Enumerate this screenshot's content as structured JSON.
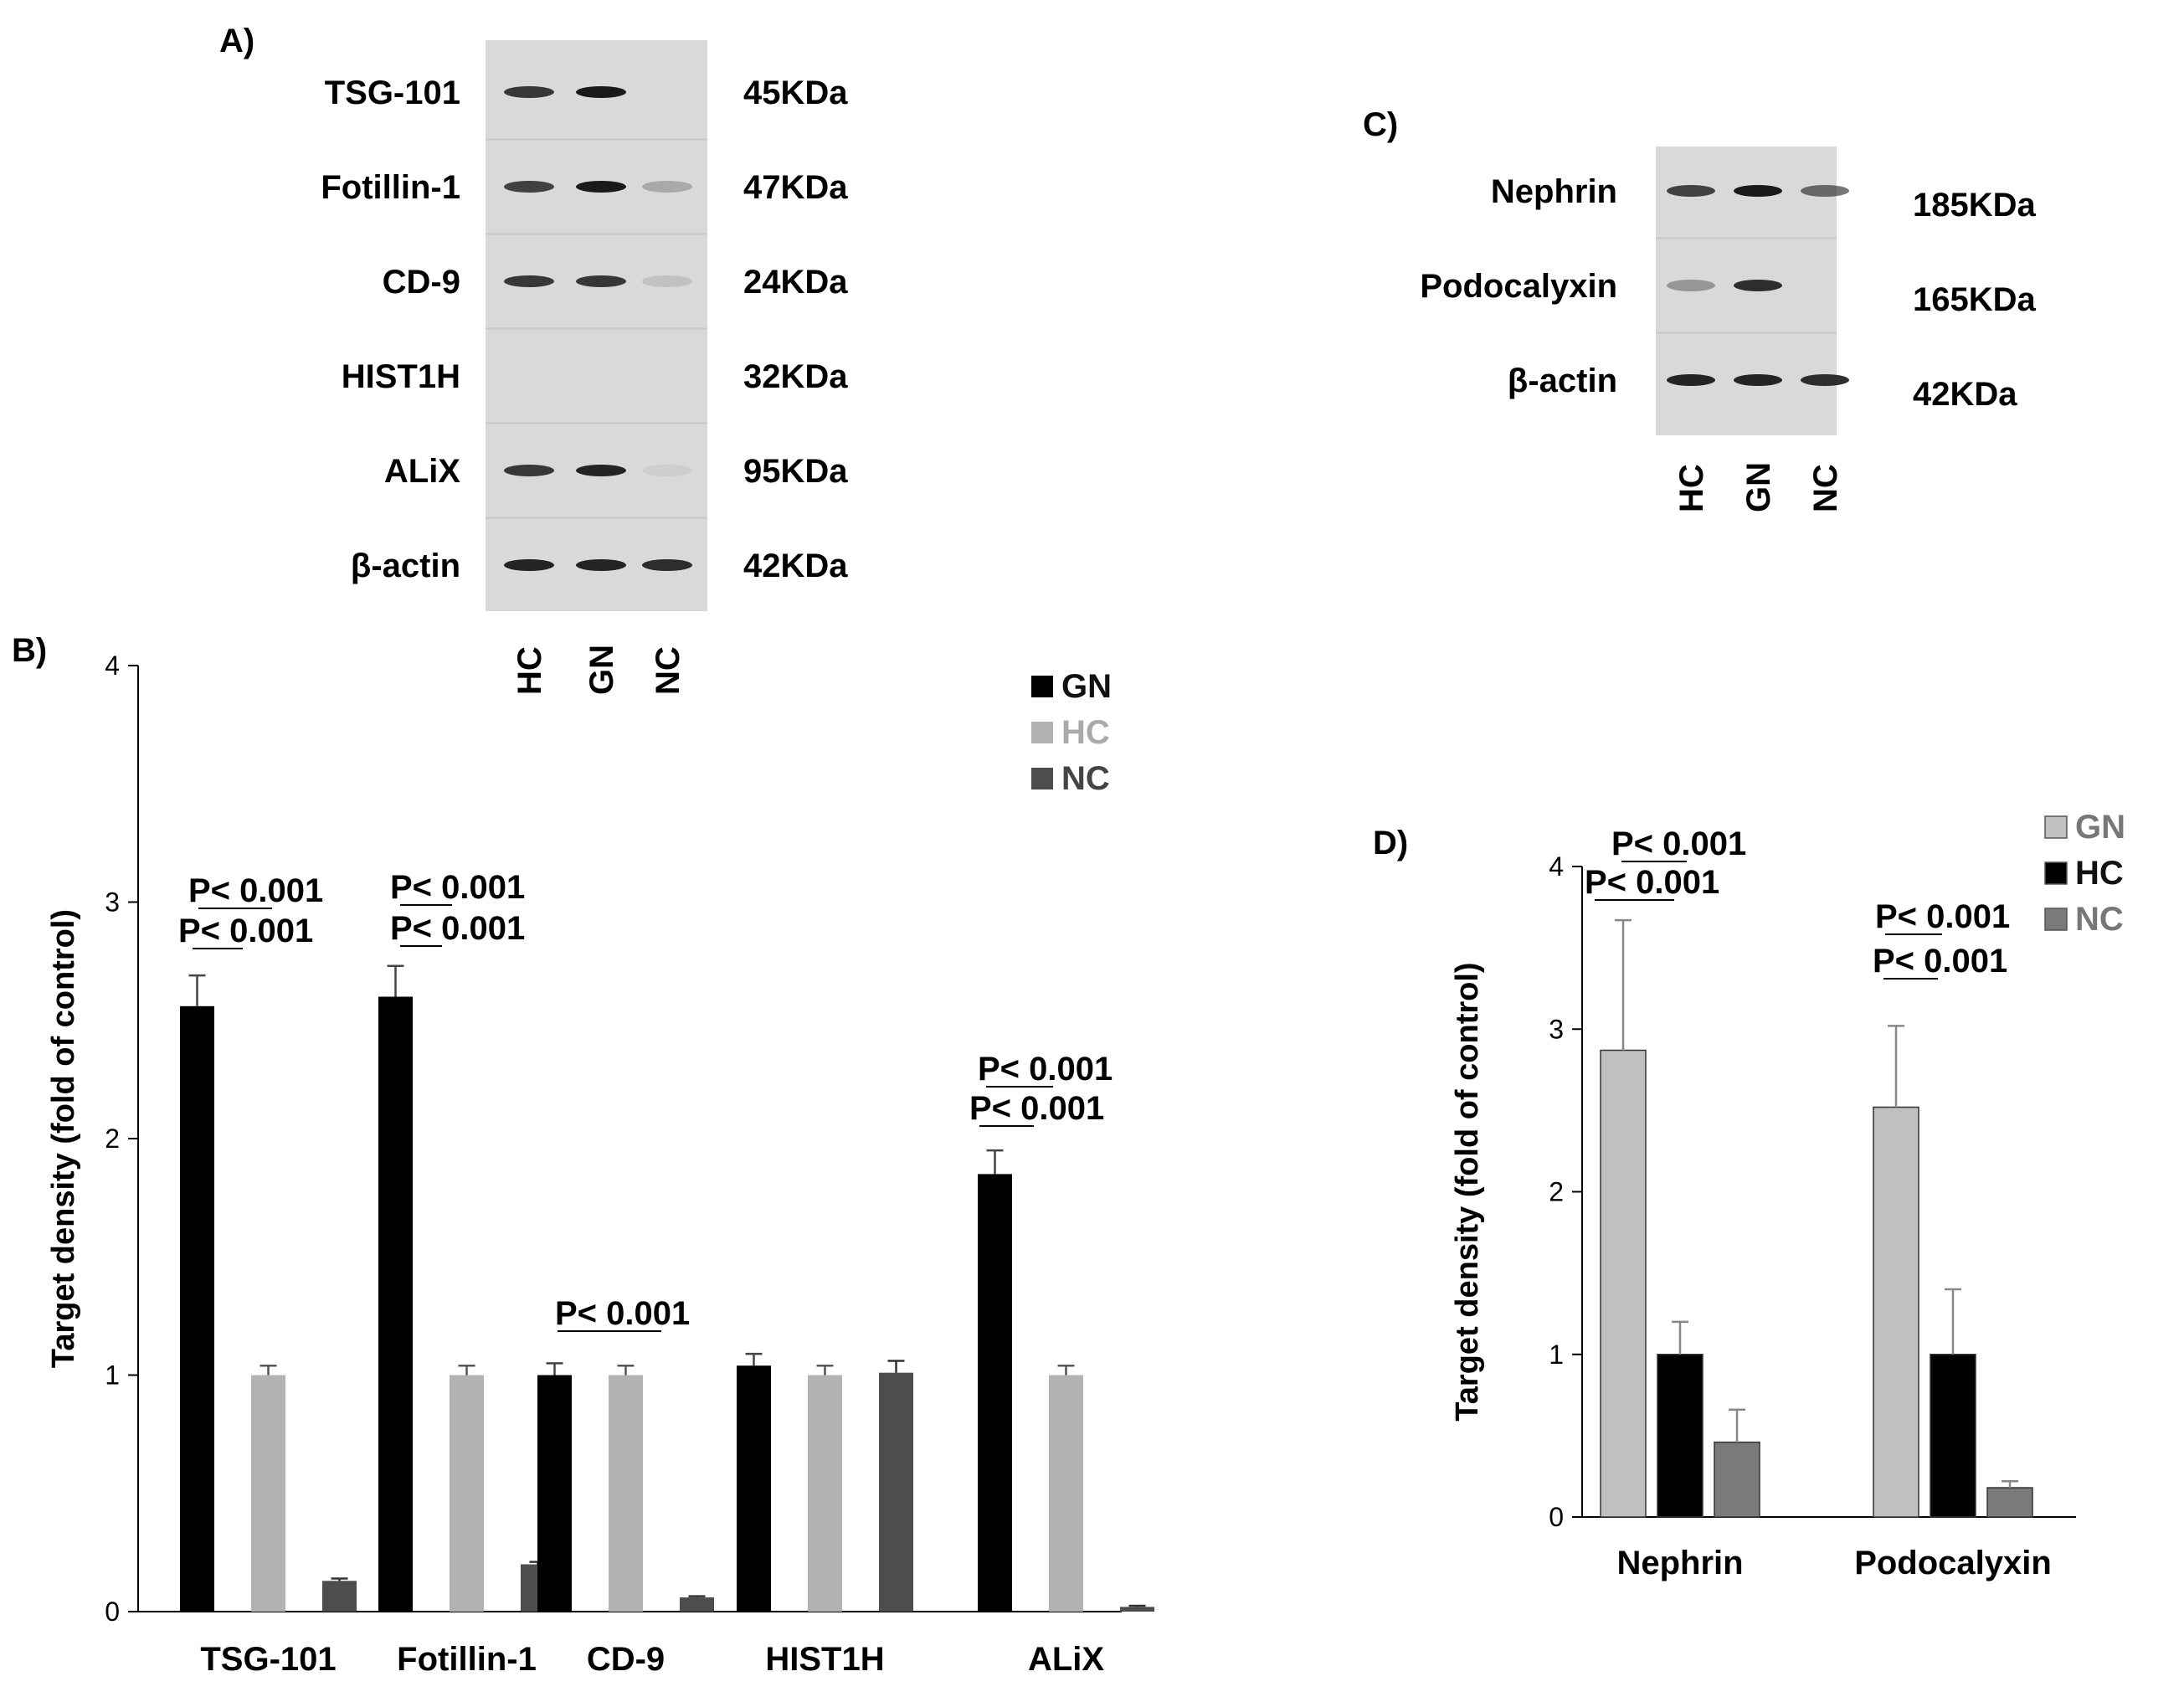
{
  "panel_a": {
    "letter": "A)",
    "rows": [
      {
        "protein": "TSG-101",
        "size": "45KDa"
      },
      {
        "protein": "Fotillin-1",
        "size": "47KDa"
      },
      {
        "protein": "CD-9",
        "size": "24KDa"
      },
      {
        "protein": "HIST1H",
        "size": "32KDa"
      },
      {
        "protein": "ALiX",
        "size": "95KDa"
      },
      {
        "protein": "β-actin",
        "size": "42KDa"
      }
    ],
    "lanes": [
      "HC",
      "GN",
      "NC"
    ]
  },
  "panel_c": {
    "letter": "C)",
    "rows": [
      {
        "protein": "Nephrin",
        "size": "185KDa"
      },
      {
        "protein": "Podocalyxin",
        "size": "165KDa"
      },
      {
        "protein": "β-actin",
        "size": "42KDa"
      }
    ],
    "lanes": [
      "HC",
      "GN",
      "NC"
    ]
  },
  "colors": {
    "gn_b": "#000000",
    "hc_b": "#b3b3b3",
    "nc_b": "#4d4d4d",
    "gn_d": "#c0c0c0",
    "hc_d": "#000000",
    "nc_d": "#7a7a7a",
    "blot_bg": "#d9d9d9",
    "band": "#1a1a1a"
  },
  "chart_data": [
    {
      "panel": "B)",
      "type": "bar",
      "ylabel": "Target density (fold of control)",
      "ylim": [
        0,
        4
      ],
      "yticks": [
        "0",
        "1",
        "2",
        "3",
        "4"
      ],
      "categories": [
        "TSG-101",
        "Fotillin-1",
        "CD-9",
        "HIST1H",
        "ALiX"
      ],
      "series": [
        {
          "name": "GN",
          "values": [
            2.56,
            2.6,
            1.0,
            1.04,
            1.85
          ],
          "errors": [
            0.13,
            0.13,
            0.05,
            0.05,
            0.1
          ]
        },
        {
          "name": "HC",
          "values": [
            1.0,
            1.0,
            1.0,
            1.0,
            1.0
          ],
          "errors": [
            0.04,
            0.04,
            0.04,
            0.04,
            0.04
          ]
        },
        {
          "name": "NC",
          "values": [
            0.13,
            0.2,
            0.06,
            1.01,
            0.02
          ],
          "errors": [
            0.01,
            0.01,
            0.005,
            0.05,
            0.005
          ]
        }
      ],
      "legend": [
        "GN",
        "HC",
        "NC"
      ],
      "annotations": [
        {
          "category": 0,
          "lines": [
            "P< 0.001",
            "P< 0.001"
          ]
        },
        {
          "category": 1,
          "lines": [
            "P< 0.001",
            "P< 0.001"
          ]
        },
        {
          "category": 2,
          "lines": [
            "P< 0.001"
          ]
        },
        {
          "category": 4,
          "lines": [
            "P< 0.001",
            "P< 0.001"
          ]
        }
      ]
    },
    {
      "panel": "D)",
      "type": "bar",
      "ylabel": "Target density (fold of control)",
      "ylim": [
        0,
        4
      ],
      "yticks": [
        "0",
        "1",
        "2",
        "3",
        "4"
      ],
      "categories": [
        "Nephrin",
        "Podocalyxin"
      ],
      "series": [
        {
          "name": "GN",
          "values": [
            2.87,
            2.52
          ],
          "errors": [
            0.8,
            0.5
          ]
        },
        {
          "name": "HC",
          "values": [
            1.0,
            1.0
          ],
          "errors": [
            0.2,
            0.4
          ]
        },
        {
          "name": "NC",
          "values": [
            0.46,
            0.18
          ],
          "errors": [
            0.2,
            0.04
          ]
        }
      ],
      "legend": [
        "GN",
        "HC",
        "NC"
      ],
      "annotations": [
        {
          "category": 0,
          "lines": [
            "P< 0.001",
            "P< 0.001"
          ]
        },
        {
          "category": 1,
          "lines": [
            "P< 0.001",
            "P< 0.001"
          ]
        }
      ]
    }
  ]
}
